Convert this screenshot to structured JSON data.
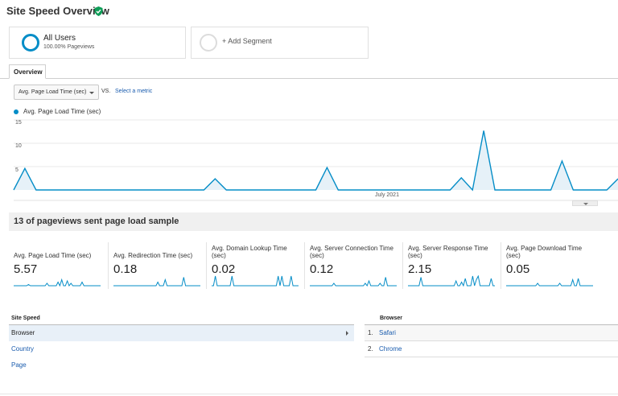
{
  "page": {
    "title": "Site Speed Overview",
    "verified_icon": "shield-check-icon",
    "accent": "#058dc7"
  },
  "segments": [
    {
      "name": "All Users",
      "sub": "100.00% Pageviews"
    },
    {
      "name": "+ Add Segment"
    }
  ],
  "tabs": [
    {
      "label": "Overview"
    }
  ],
  "controls": {
    "metric": "Avg. Page Load Time (sec)",
    "vs": "VS.",
    "select_metric": "Select a metric"
  },
  "chart_data": {
    "type": "area",
    "series": [
      {
        "name": "Avg. Page Load Time (sec)",
        "color": "#058dc7",
        "values": [
          0,
          4.6,
          0,
          0,
          0,
          0,
          0,
          0,
          0,
          0,
          0,
          0,
          0,
          0,
          0,
          0,
          0,
          0,
          2.4,
          0,
          0,
          0,
          0,
          0,
          0,
          0,
          0,
          0,
          4.8,
          0,
          0,
          0,
          0,
          0,
          0,
          0,
          0,
          0,
          0,
          0,
          2.6,
          0,
          12.7,
          0,
          0,
          0,
          0,
          0,
          0,
          6.2,
          0,
          0,
          0,
          0,
          2.4
        ]
      }
    ],
    "x_label": "July 2021",
    "yticks": [
      15,
      10,
      5
    ],
    "ylim": [
      0,
      15
    ],
    "grid": true
  },
  "sample": {
    "text": "13 of pageviews sent page load sample"
  },
  "kpis": [
    {
      "label": "Avg. Page Load Time (sec)",
      "value": "5.57",
      "spark": [
        0,
        0,
        0,
        0,
        0,
        0,
        0,
        0,
        1,
        0,
        0,
        0,
        0,
        0,
        0,
        0,
        0,
        0,
        2,
        0,
        0,
        0,
        0,
        0,
        3,
        0,
        5,
        0,
        0,
        4,
        0,
        2,
        0,
        0,
        0,
        0,
        0,
        3,
        0,
        0,
        0,
        0,
        0,
        0,
        0,
        0,
        0,
        0
      ]
    },
    {
      "label": "Avg. Redirection Time (sec)",
      "value": "0.18",
      "spark": [
        0,
        0,
        0,
        0,
        0,
        0,
        0,
        0,
        0,
        0,
        0,
        0,
        0,
        0,
        0,
        0,
        0,
        0,
        0,
        0,
        0,
        0,
        0,
        0,
        3,
        0,
        0,
        0,
        5,
        0,
        0,
        0,
        0,
        0,
        0,
        0,
        0,
        0,
        7,
        0,
        0,
        0,
        0,
        0,
        0,
        0,
        0,
        0
      ]
    },
    {
      "label": "Avg. Domain Lookup Time (sec)",
      "value": "0.02",
      "spark": [
        0,
        0,
        8,
        0,
        0,
        0,
        0,
        0,
        0,
        0,
        0,
        8,
        0,
        0,
        0,
        0,
        0,
        0,
        0,
        0,
        0,
        0,
        0,
        0,
        0,
        0,
        0,
        0,
        0,
        0,
        0,
        0,
        0,
        0,
        0,
        0,
        8,
        0,
        8,
        0,
        0,
        0,
        0,
        8,
        0,
        0,
        0,
        0
      ]
    },
    {
      "label": "Avg. Server Connection Time (sec)",
      "value": "0.12",
      "spark": [
        0,
        0,
        0,
        0,
        0,
        0,
        0,
        0,
        0,
        0,
        0,
        0,
        0,
        2,
        0,
        0,
        0,
        0,
        0,
        0,
        0,
        0,
        0,
        0,
        0,
        0,
        0,
        0,
        0,
        0,
        2,
        0,
        4,
        0,
        0,
        0,
        0,
        0,
        2,
        0,
        0,
        7,
        0,
        0,
        0,
        0,
        0,
        0
      ]
    },
    {
      "label": "Avg. Server Response Time (sec)",
      "value": "2.15",
      "spark": [
        0,
        0,
        0,
        0,
        0,
        0,
        0,
        7,
        0,
        0,
        0,
        0,
        0,
        0,
        0,
        0,
        0,
        0,
        0,
        0,
        0,
        0,
        0,
        0,
        0,
        0,
        4,
        0,
        0,
        3,
        0,
        6,
        0,
        0,
        0,
        8,
        0,
        5,
        8,
        0,
        0,
        0,
        0,
        0,
        0,
        6,
        0,
        0
      ]
    },
    {
      "label": "Avg. Page Download Time (sec)",
      "value": "0.05",
      "spark": [
        0,
        0,
        0,
        0,
        0,
        0,
        0,
        0,
        0,
        0,
        0,
        0,
        0,
        0,
        0,
        0,
        0,
        2,
        0,
        0,
        0,
        0,
        0,
        0,
        0,
        0,
        0,
        0,
        0,
        2,
        0,
        0,
        0,
        0,
        0,
        0,
        5,
        0,
        0,
        6,
        0,
        0,
        0,
        0,
        0,
        0,
        0,
        0
      ]
    }
  ],
  "left_table": {
    "header": "Site Speed",
    "rows": [
      "Browser",
      "Country",
      "Page"
    ]
  },
  "right_table": {
    "header": "Browser",
    "rows": [
      {
        "rank": "1.",
        "name": "Safari"
      },
      {
        "rank": "2.",
        "name": "Chrome"
      }
    ]
  }
}
